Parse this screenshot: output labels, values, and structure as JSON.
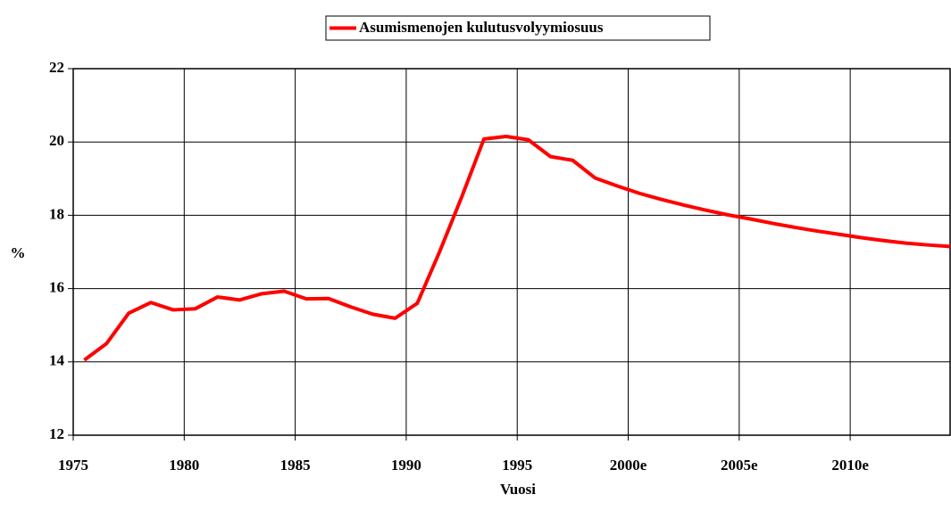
{
  "chart_data": {
    "type": "line",
    "x_label": "Vuosi",
    "y_label": "%",
    "x": [
      1975.5,
      1976.5,
      1977.5,
      1978.5,
      1979.5,
      1980.5,
      1981.5,
      1982.5,
      1983.5,
      1984.5,
      1985.5,
      1986.5,
      1987.5,
      1988.5,
      1989.5,
      1990.5,
      1991.5,
      1992.5,
      1993.5,
      1994.5,
      1995.5,
      1996.5,
      1997.5,
      1998.5,
      1999.5,
      2000.5,
      2001.5,
      2002.5,
      2003.5,
      2004.5,
      2005.5,
      2006.5,
      2007.5,
      2008.5,
      2009.5,
      2010.5,
      2011.5,
      2012.5,
      2013.5,
      2014.5
    ],
    "series": [
      {
        "name": "Asumismenojen kulutusvolyymiosuus",
        "color": "#ff0000",
        "values": [
          14.05,
          14.5,
          15.33,
          15.62,
          15.42,
          15.45,
          15.77,
          15.69,
          15.86,
          15.93,
          15.72,
          15.73,
          15.5,
          15.3,
          15.19,
          15.6,
          17.0,
          18.5,
          20.08,
          20.15,
          20.06,
          19.6,
          19.5,
          19.02,
          18.8,
          18.6,
          18.43,
          18.28,
          18.14,
          18.01,
          17.9,
          17.78,
          17.67,
          17.57,
          17.48,
          17.39,
          17.31,
          17.24,
          17.19,
          17.15
        ]
      }
    ],
    "xlim": [
      1975,
      2014.5
    ],
    "xticks": [
      1975,
      1980,
      1985,
      1990,
      1995,
      {
        "value": 2000,
        "label": "2000e"
      },
      {
        "value": 2005,
        "label": "2005e"
      },
      {
        "value": 2010,
        "label": "2010e"
      }
    ],
    "ylim": [
      12,
      22
    ],
    "yticks": [
      12,
      14,
      16,
      18,
      20,
      22
    ],
    "grid": true,
    "legend": "top"
  }
}
